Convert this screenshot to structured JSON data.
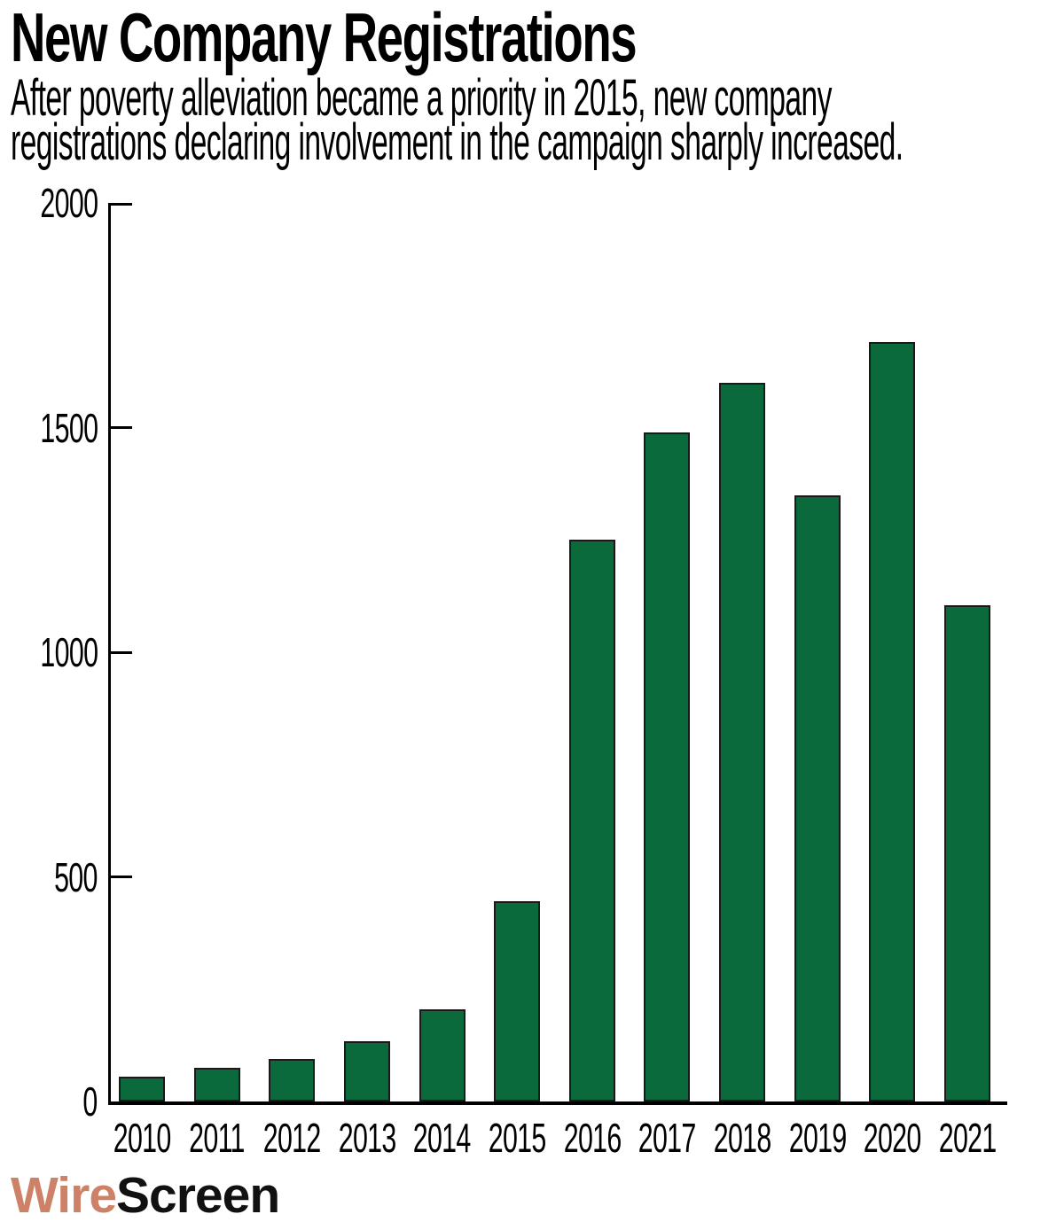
{
  "page": {
    "title": "New Company Registrations",
    "subtitle_line1": "After poverty alleviation became a priority in 2015, new company",
    "subtitle_line2": "registrations declaring involvement in the campaign sharply increased."
  },
  "chart_data": {
    "type": "bar",
    "title": "New Company Registrations",
    "subtitle": "After poverty alleviation became a priority in 2015, new company registrations declaring involvement in the campaign sharply increased.",
    "categories": [
      "2010",
      "2011",
      "2012",
      "2013",
      "2014",
      "2015",
      "2016",
      "2017",
      "2018",
      "2019",
      "2020",
      "2021"
    ],
    "values": [
      55,
      75,
      95,
      135,
      205,
      445,
      1250,
      1490,
      1600,
      1350,
      1690,
      1105
    ],
    "xlabel": "",
    "ylabel": "",
    "ylim": [
      0,
      2000
    ],
    "yticks": [
      0,
      500,
      1000,
      1500,
      2000
    ],
    "grid": false,
    "legend": false,
    "bar_color": "#0a6a3b",
    "bar_border_color": "#1a1a1a",
    "axis_color": "#000000"
  },
  "logo": {
    "wire": "Wire",
    "screen": "Screen",
    "wire_color": "#cd8166",
    "screen_color": "#111111"
  }
}
